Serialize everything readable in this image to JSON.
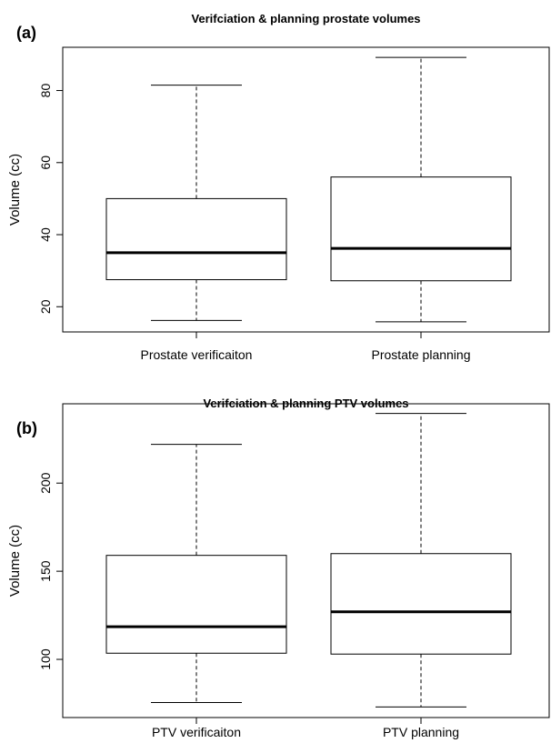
{
  "chart_data": [
    {
      "type": "box",
      "panel_label": "(a)",
      "title": "Verifciation & planning prostate volumes",
      "xlabel": "",
      "ylabel": "Volume (cc)",
      "ylim": [
        13,
        92
      ],
      "yticks": [
        20,
        40,
        60,
        80
      ],
      "categories": [
        "Prostate verificaiton",
        "Prostate planning"
      ],
      "boxes": [
        {
          "min": 16.2,
          "q1": 27.5,
          "median": 35.0,
          "q3": 50.0,
          "max": 81.5
        },
        {
          "min": 15.8,
          "q1": 27.2,
          "median": 36.2,
          "q3": 56.0,
          "max": 89.2
        }
      ]
    },
    {
      "type": "box",
      "panel_label": "(b)",
      "title": "Verifciation & planning PTV volumes",
      "xlabel": "",
      "ylabel": "Volume (cc)",
      "ylim": [
        67,
        245
      ],
      "yticks": [
        100,
        150,
        200
      ],
      "categories": [
        "PTV verificaiton",
        "PTV planning"
      ],
      "boxes": [
        {
          "min": 75.5,
          "q1": 103.5,
          "median": 118.5,
          "q3": 159.0,
          "max": 222.0
        },
        {
          "min": 73.0,
          "q1": 103.0,
          "median": 127.0,
          "q3": 160.0,
          "max": 239.5
        }
      ]
    }
  ]
}
